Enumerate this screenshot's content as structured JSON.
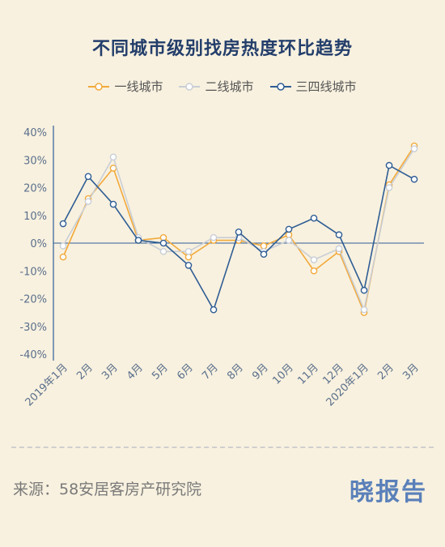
{
  "chart_data": {
    "type": "line",
    "title": "不同城市级别找房热度环比趋势",
    "categories": [
      "2019年1月",
      "2月",
      "3月",
      "4月",
      "5月",
      "6月",
      "7月",
      "8月",
      "9月",
      "10月",
      "11月",
      "12月",
      "2020年1月",
      "2月",
      "3月"
    ],
    "y_ticks": [
      "40%",
      "30%",
      "20%",
      "10%",
      "0%",
      "-10%",
      "-20%",
      "-30%",
      "-40%"
    ],
    "ylim": [
      -40,
      40
    ],
    "grid": false,
    "legend_position": "top",
    "series": [
      {
        "name": "一线城市",
        "color": "#f2a93b",
        "values": [
          -5,
          16,
          27,
          1,
          2,
          -5,
          1,
          1,
          -1,
          3,
          -10,
          -3,
          -25,
          21,
          35
        ]
      },
      {
        "name": "二线城市",
        "color": "#c9ced6",
        "values": [
          -1,
          15,
          31,
          2,
          -3,
          -3,
          2,
          2,
          -3,
          1,
          -6,
          -2,
          -24,
          20,
          34
        ]
      },
      {
        "name": "三四线城市",
        "color": "#2f5d94",
        "values": [
          7,
          24,
          14,
          1,
          0,
          -8,
          -24,
          4,
          -4,
          5,
          9,
          3,
          -17,
          28,
          23
        ]
      }
    ]
  },
  "footer": {
    "source": "来源：58安居客房产研究院",
    "brand": "晓报告"
  }
}
